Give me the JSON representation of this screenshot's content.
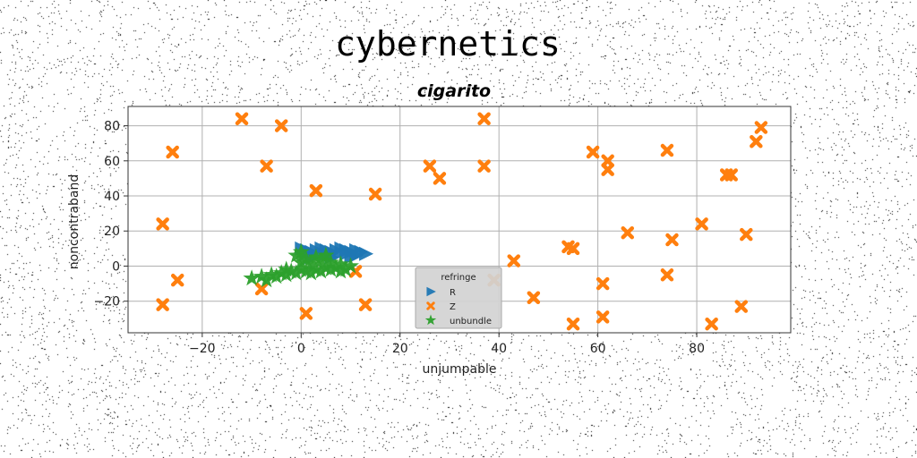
{
  "figure": {
    "suptitle": "cybernetics"
  },
  "colors": {
    "R": "#1f77b4",
    "Z": "#ff7f0e",
    "unbundle": "#2ca02c",
    "grid": "#b0b0b0",
    "legend_bg": "#d3d3d3"
  },
  "chart_data": {
    "type": "scatter",
    "title": "cigarito",
    "xlabel": "unjumpable",
    "ylabel": "noncontraband",
    "xlim": [
      -35,
      99
    ],
    "ylim": [
      -38,
      91
    ],
    "x_ticks": [
      -20,
      0,
      20,
      40,
      60,
      80
    ],
    "y_ticks": [
      -20,
      0,
      20,
      40,
      60,
      80
    ],
    "x_tick_labels": [
      "−20",
      "0",
      "20",
      "40",
      "60",
      "80"
    ],
    "y_tick_labels": [
      "−20",
      "0",
      "20",
      "40",
      "60",
      "80"
    ],
    "grid": true,
    "legend": {
      "title": "refringe",
      "placement": "lower-center"
    },
    "series": [
      {
        "name": "R",
        "marker": "triangle-right",
        "x": [
          0,
          1,
          2,
          3,
          4,
          5,
          6,
          7,
          8,
          9,
          10,
          11,
          12,
          13,
          1,
          3,
          5,
          7,
          9,
          11,
          2,
          6,
          10
        ],
        "y": [
          10,
          9,
          8,
          9,
          10,
          9,
          8,
          9,
          10,
          9,
          8,
          9,
          8,
          7,
          7,
          6,
          7,
          6,
          7,
          6,
          5,
          5,
          5
        ]
      },
      {
        "name": "Z",
        "marker": "x",
        "x": [
          -12,
          -4,
          -26,
          -7,
          3,
          15,
          -28,
          -25,
          -8,
          -28,
          1,
          11,
          13,
          26,
          28,
          37,
          37,
          39,
          43,
          47,
          54,
          55,
          55,
          59,
          61,
          61,
          62,
          62,
          66,
          74,
          74,
          75,
          81,
          83,
          86,
          87,
          89,
          90,
          92,
          93
        ],
        "y": [
          84,
          80,
          65,
          57,
          43,
          41,
          24,
          -8,
          -13,
          -22,
          -27,
          -3,
          -22,
          57,
          50,
          84,
          57,
          -8,
          3,
          -18,
          11,
          10,
          -33,
          65,
          -10,
          -29,
          60,
          55,
          19,
          66,
          -5,
          15,
          24,
          -33,
          52,
          52,
          -23,
          18,
          71,
          79
        ]
      },
      {
        "name": "unbundle",
        "marker": "star",
        "x": [
          -10,
          -8,
          -7,
          -6,
          -5,
          -4,
          -3,
          -2,
          -1,
          0,
          1,
          2,
          3,
          4,
          5,
          6,
          7,
          8,
          9,
          10,
          -1,
          1,
          3,
          5,
          0,
          2,
          4,
          6,
          8,
          -3,
          0
        ],
        "y": [
          -7,
          -6,
          -8,
          -5,
          -6,
          -4,
          -5,
          -3,
          -4,
          -2,
          -3,
          -4,
          -2,
          -3,
          -1,
          -2,
          -1,
          -3,
          -2,
          0,
          6,
          4,
          5,
          6,
          2,
          1,
          3,
          2,
          1,
          -2,
          8
        ]
      }
    ]
  }
}
